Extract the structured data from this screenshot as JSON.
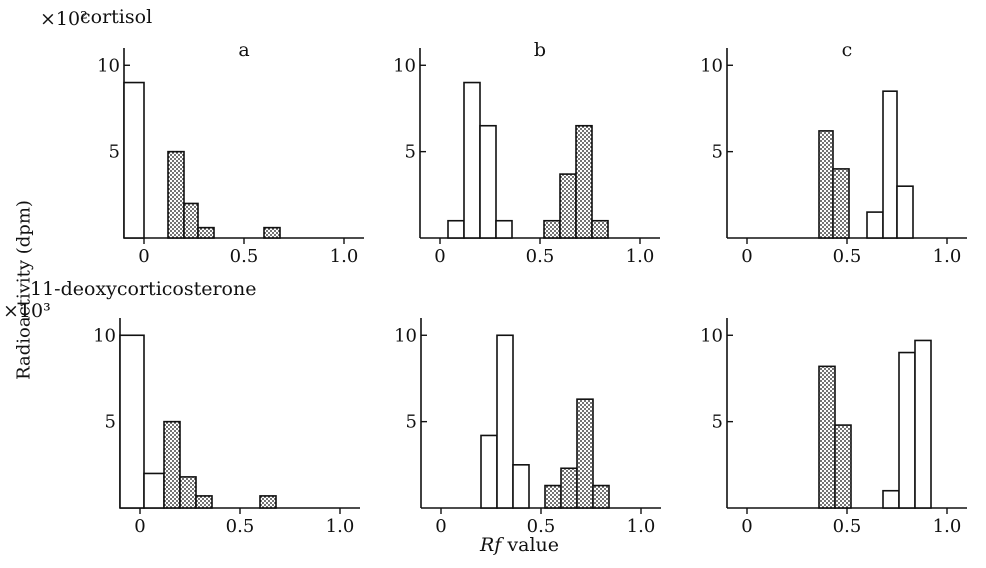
{
  "y_axis_label": "Radioactivity (dpm)",
  "x_axis_label_var": "Rf",
  "x_axis_label_rest": " value",
  "rows": [
    {
      "label": "cortisol",
      "multiplier": "×10²"
    },
    {
      "label": "11-deoxycorticosterone",
      "multiplier": "×10³"
    }
  ],
  "chart_data": [
    {
      "type": "bar",
      "panel": "a",
      "row": "cortisol",
      "title": "a",
      "xlim": [
        -0.1,
        1.1
      ],
      "ylim": [
        0,
        11
      ],
      "xticks": [
        "0",
        "0.5",
        "1.0"
      ],
      "yticks": [
        "5",
        "10"
      ],
      "series": [
        {
          "fill": "open",
          "bins": [
            {
              "x0": -0.1,
              "x1": 0.0,
              "y": 9.0
            }
          ]
        },
        {
          "fill": "dotted",
          "bins": [
            {
              "x0": 0.12,
              "x1": 0.2,
              "y": 5.0
            },
            {
              "x0": 0.2,
              "x1": 0.27,
              "y": 2.0
            },
            {
              "x0": 0.27,
              "x1": 0.35,
              "y": 0.6
            },
            {
              "x0": 0.6,
              "x1": 0.68,
              "y": 0.6
            }
          ]
        }
      ]
    },
    {
      "type": "bar",
      "panel": "b",
      "row": "cortisol",
      "title": "b",
      "xlim": [
        -0.1,
        1.1
      ],
      "ylim": [
        0,
        11
      ],
      "xticks": [
        "0",
        "0.5",
        "1.0"
      ],
      "yticks": [
        "5",
        "10"
      ],
      "series": [
        {
          "fill": "open",
          "bins": [
            {
              "x0": 0.04,
              "x1": 0.12,
              "y": 1.0
            },
            {
              "x0": 0.12,
              "x1": 0.2,
              "y": 9.0
            },
            {
              "x0": 0.2,
              "x1": 0.28,
              "y": 6.5
            },
            {
              "x0": 0.28,
              "x1": 0.36,
              "y": 1.0
            }
          ]
        },
        {
          "fill": "dotted",
          "bins": [
            {
              "x0": 0.52,
              "x1": 0.6,
              "y": 1.0
            },
            {
              "x0": 0.6,
              "x1": 0.68,
              "y": 3.7
            },
            {
              "x0": 0.68,
              "x1": 0.76,
              "y": 6.5
            },
            {
              "x0": 0.76,
              "x1": 0.84,
              "y": 1.0
            }
          ]
        }
      ]
    },
    {
      "type": "bar",
      "panel": "c",
      "row": "cortisol",
      "title": "c",
      "xlim": [
        -0.1,
        1.1
      ],
      "ylim": [
        0,
        11
      ],
      "xticks": [
        "0",
        "0.5",
        "1.0"
      ],
      "yticks": [
        "5",
        "10"
      ],
      "series": [
        {
          "fill": "dotted",
          "bins": [
            {
              "x0": 0.36,
              "x1": 0.43,
              "y": 6.2
            },
            {
              "x0": 0.43,
              "x1": 0.51,
              "y": 4.0
            }
          ]
        },
        {
          "fill": "open",
          "bins": [
            {
              "x0": 0.6,
              "x1": 0.68,
              "y": 1.5
            },
            {
              "x0": 0.68,
              "x1": 0.75,
              "y": 8.5
            },
            {
              "x0": 0.75,
              "x1": 0.83,
              "y": 3.0
            }
          ]
        }
      ]
    },
    {
      "type": "bar",
      "panel": "a",
      "row": "11-deoxycorticosterone",
      "title": "",
      "xlim": [
        -0.1,
        1.1
      ],
      "ylim": [
        0,
        11
      ],
      "xticks": [
        "0",
        "0.5",
        "1.0"
      ],
      "yticks": [
        "5",
        "10"
      ],
      "series": [
        {
          "fill": "open",
          "bins": [
            {
              "x0": -0.1,
              "x1": 0.02,
              "y": 10.0
            },
            {
              "x0": 0.02,
              "x1": 0.12,
              "y": 2.0
            }
          ]
        },
        {
          "fill": "dotted",
          "bins": [
            {
              "x0": 0.12,
              "x1": 0.2,
              "y": 5.0
            },
            {
              "x0": 0.2,
              "x1": 0.28,
              "y": 1.8
            },
            {
              "x0": 0.28,
              "x1": 0.36,
              "y": 0.7
            },
            {
              "x0": 0.6,
              "x1": 0.68,
              "y": 0.7
            }
          ]
        }
      ]
    },
    {
      "type": "bar",
      "panel": "b",
      "row": "11-deoxycorticosterone",
      "title": "",
      "xlim": [
        -0.1,
        1.1
      ],
      "ylim": [
        0,
        11
      ],
      "xticks": [
        "0",
        "0.5",
        "1.0"
      ],
      "yticks": [
        "5",
        "10"
      ],
      "series": [
        {
          "fill": "open",
          "bins": [
            {
              "x0": 0.2,
              "x1": 0.28,
              "y": 4.2
            },
            {
              "x0": 0.28,
              "x1": 0.36,
              "y": 10.0
            },
            {
              "x0": 0.36,
              "x1": 0.44,
              "y": 2.5
            }
          ]
        },
        {
          "fill": "dotted",
          "bins": [
            {
              "x0": 0.52,
              "x1": 0.6,
              "y": 1.3
            },
            {
              "x0": 0.6,
              "x1": 0.68,
              "y": 2.3
            },
            {
              "x0": 0.68,
              "x1": 0.76,
              "y": 6.3
            },
            {
              "x0": 0.76,
              "x1": 0.84,
              "y": 1.3
            }
          ]
        }
      ]
    },
    {
      "type": "bar",
      "panel": "c",
      "row": "11-deoxycorticosterone",
      "title": "",
      "xlim": [
        -0.1,
        1.1
      ],
      "ylim": [
        0,
        11
      ],
      "xticks": [
        "0",
        "0.5",
        "1.0"
      ],
      "yticks": [
        "5",
        "10"
      ],
      "series": [
        {
          "fill": "dotted",
          "bins": [
            {
              "x0": 0.36,
              "x1": 0.44,
              "y": 8.2
            },
            {
              "x0": 0.44,
              "x1": 0.52,
              "y": 4.8
            }
          ]
        },
        {
          "fill": "open",
          "bins": [
            {
              "x0": 0.68,
              "x1": 0.76,
              "y": 1.0
            },
            {
              "x0": 0.76,
              "x1": 0.84,
              "y": 9.0
            },
            {
              "x0": 0.84,
              "x1": 0.92,
              "y": 9.7
            }
          ]
        }
      ]
    }
  ]
}
